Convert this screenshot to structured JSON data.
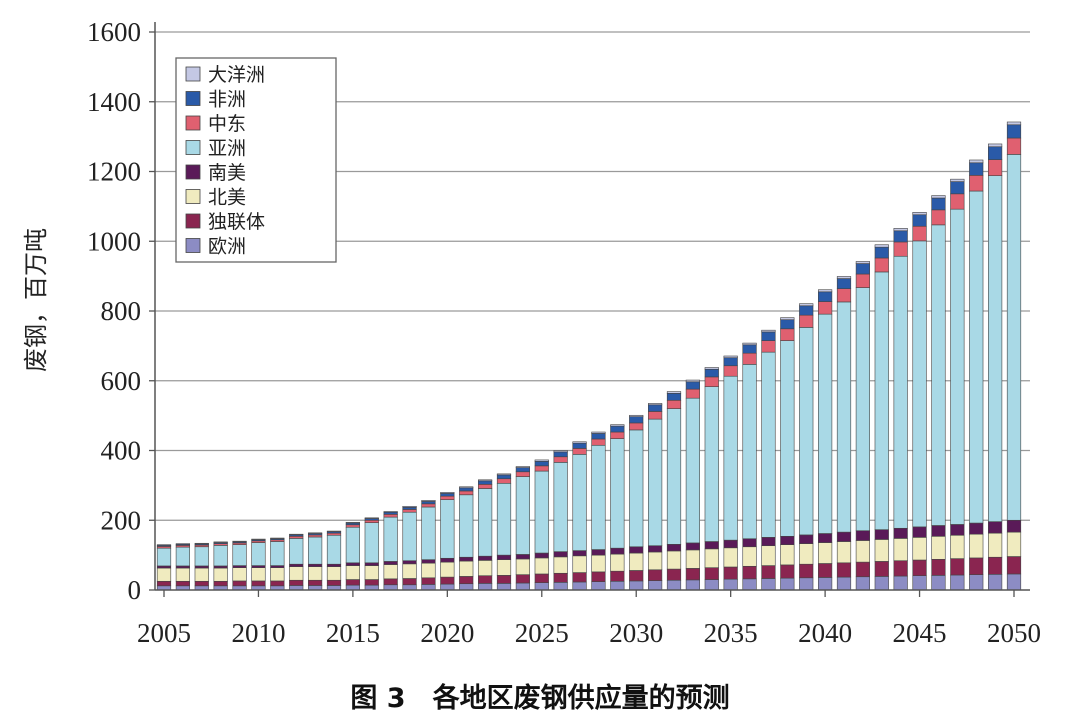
{
  "caption": "图 3　各地区废钢供应量的预测",
  "chart_data": {
    "type": "bar",
    "stacked": true,
    "title": "",
    "xlabel": "",
    "ylabel": "废钢，百万吨",
    "ylim": [
      0,
      1600
    ],
    "yticks": [
      0,
      200,
      400,
      600,
      800,
      1000,
      1200,
      1400,
      1600
    ],
    "xticks": [
      "2005",
      "2010",
      "2015",
      "2020",
      "2025",
      "2030",
      "2035",
      "2040",
      "2045",
      "2050"
    ],
    "grid": true,
    "legend_position": "top-left",
    "x_start": 2005,
    "x_end": 2050,
    "series": [
      {
        "name": "欧洲",
        "color": "#8c8cc4",
        "values": [
          12,
          12,
          12,
          12,
          12,
          12,
          12,
          13,
          13,
          13,
          14,
          14,
          15,
          15,
          16,
          17,
          18,
          19,
          19,
          20,
          21,
          22,
          23,
          24,
          25,
          26,
          27,
          28,
          29,
          30,
          31,
          32,
          33,
          34,
          35,
          36,
          37,
          38,
          39,
          40,
          41,
          42,
          43,
          44,
          45,
          46
        ]
      },
      {
        "name": "独联体",
        "color": "#8a2550",
        "values": [
          13,
          13,
          13,
          13,
          14,
          14,
          14,
          15,
          15,
          15,
          16,
          16,
          17,
          18,
          19,
          20,
          21,
          22,
          23,
          24,
          25,
          26,
          27,
          28,
          29,
          30,
          31,
          32,
          33,
          34,
          35,
          36,
          37,
          38,
          39,
          40,
          41,
          42,
          43,
          44,
          45,
          46,
          47,
          48,
          49,
          50
        ]
      },
      {
        "name": "北美",
        "color": "#f0ebbf",
        "values": [
          38,
          38,
          38,
          38,
          38,
          38,
          38,
          39,
          39,
          39,
          40,
          40,
          41,
          42,
          42,
          43,
          44,
          44,
          45,
          45,
          46,
          47,
          48,
          48,
          49,
          50,
          51,
          52,
          53,
          54,
          55,
          56,
          57,
          58,
          59,
          60,
          61,
          62,
          63,
          64,
          65,
          66,
          67,
          68,
          69,
          70
        ]
      },
      {
        "name": "南美",
        "color": "#5a1a58",
        "values": [
          6,
          6,
          6,
          6,
          6,
          6,
          6,
          7,
          7,
          7,
          8,
          8,
          9,
          9,
          10,
          11,
          11,
          12,
          13,
          13,
          14,
          15,
          15,
          16,
          17,
          18,
          18,
          19,
          20,
          21,
          22,
          23,
          24,
          24,
          25,
          26,
          27,
          28,
          28,
          29,
          30,
          31,
          31,
          32,
          33,
          34
        ]
      },
      {
        "name": "亚洲",
        "color": "#a9d9e6",
        "values": [
          51,
          54,
          55,
          59,
          60,
          66,
          69,
          74,
          78,
          83,
          102,
          115,
          127,
          139,
          151,
          168,
          179,
          194,
          206,
          223,
          235,
          256,
          276,
          299,
          314,
          335,
          363,
          389,
          415,
          444,
          470,
          500,
          531,
          561,
          595,
          629,
          660,
          697,
          739,
          780,
          820,
          862,
          904,
          952,
          992,
          1049
        ]
      },
      {
        "name": "中东",
        "color": "#e06070",
        "values": [
          5,
          5,
          5,
          5,
          5,
          5,
          5,
          6,
          6,
          6,
          7,
          7,
          8,
          8,
          9,
          10,
          11,
          12,
          13,
          14,
          15,
          16,
          17,
          18,
          19,
          20,
          22,
          24,
          26,
          28,
          30,
          32,
          33,
          34,
          35,
          36,
          38,
          39,
          40,
          41,
          42,
          43,
          44,
          45,
          46,
          47
        ]
      },
      {
        "name": "非洲",
        "color": "#2a5aa8",
        "values": [
          3,
          3,
          3,
          3,
          3,
          3,
          3,
          4,
          4,
          4,
          5,
          5,
          6,
          6,
          7,
          8,
          9,
          10,
          11,
          12,
          13,
          14,
          15,
          16,
          17,
          18,
          19,
          20,
          21,
          22,
          23,
          24,
          25,
          26,
          27,
          28,
          29,
          30,
          31,
          32,
          33,
          34,
          35,
          36,
          37,
          38
        ]
      },
      {
        "name": "大洋洲",
        "color": "#c4c8e4",
        "values": [
          2,
          2,
          2,
          2,
          2,
          2,
          2,
          2,
          2,
          2,
          2,
          2,
          2,
          3,
          3,
          3,
          3,
          3,
          3,
          3,
          4,
          4,
          4,
          4,
          4,
          4,
          4,
          5,
          5,
          5,
          5,
          5,
          5,
          6,
          6,
          6,
          6,
          6,
          7,
          7,
          7,
          7,
          7,
          8,
          8,
          8
        ]
      }
    ]
  }
}
